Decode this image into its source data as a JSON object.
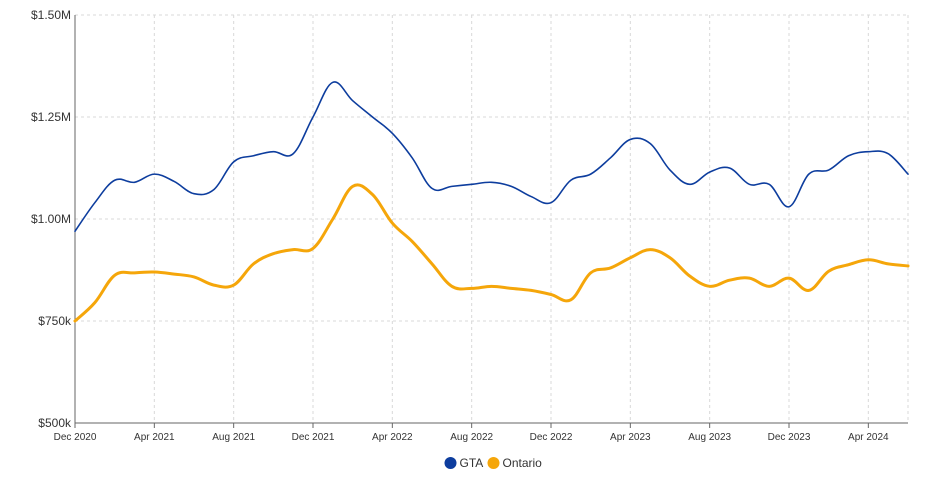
{
  "chart_data": {
    "type": "line",
    "title": "",
    "xlabel": "",
    "ylabel": "",
    "ylim": [
      500000,
      1500000
    ],
    "xlim": [
      "2020-12",
      "2024-06"
    ],
    "y_ticks": [
      {
        "value": 500000,
        "label": "$500k"
      },
      {
        "value": 750000,
        "label": "$750k"
      },
      {
        "value": 1000000,
        "label": "$1.00M"
      },
      {
        "value": 1250000,
        "label": "$1.25M"
      },
      {
        "value": 1500000,
        "label": "$1.50M"
      }
    ],
    "x_ticks": [
      {
        "value": "2020-12",
        "label": "Dec 2020"
      },
      {
        "value": "2021-04",
        "label": "Apr 2021"
      },
      {
        "value": "2021-08",
        "label": "Aug 2021"
      },
      {
        "value": "2021-12",
        "label": "Dec 2021"
      },
      {
        "value": "2022-04",
        "label": "Apr 2022"
      },
      {
        "value": "2022-08",
        "label": "Aug 2022"
      },
      {
        "value": "2022-12",
        "label": "Dec 2022"
      },
      {
        "value": "2023-04",
        "label": "Apr 2023"
      },
      {
        "value": "2023-08",
        "label": "Aug 2023"
      },
      {
        "value": "2023-12",
        "label": "Dec 2023"
      },
      {
        "value": "2024-04",
        "label": "Apr 2024"
      }
    ],
    "x": [
      "2020-12",
      "2021-01",
      "2021-02",
      "2021-03",
      "2021-04",
      "2021-05",
      "2021-06",
      "2021-07",
      "2021-08",
      "2021-09",
      "2021-10",
      "2021-11",
      "2021-12",
      "2022-01",
      "2022-02",
      "2022-03",
      "2022-04",
      "2022-05",
      "2022-06",
      "2022-07",
      "2022-08",
      "2022-09",
      "2022-10",
      "2022-11",
      "2022-12",
      "2023-01",
      "2023-02",
      "2023-03",
      "2023-04",
      "2023-05",
      "2023-06",
      "2023-07",
      "2023-08",
      "2023-09",
      "2023-10",
      "2023-11",
      "2023-12",
      "2024-01",
      "2024-02",
      "2024-03",
      "2024-04",
      "2024-05",
      "2024-06"
    ],
    "series": [
      {
        "name": "GTA",
        "color": "#0d3d9e",
        "values": [
          970000,
          1040000,
          1095000,
          1090000,
          1110000,
          1092000,
          1062000,
          1072000,
          1140000,
          1155000,
          1165000,
          1160000,
          1250000,
          1335000,
          1290000,
          1250000,
          1210000,
          1150000,
          1075000,
          1080000,
          1085000,
          1090000,
          1080000,
          1055000,
          1040000,
          1095000,
          1110000,
          1150000,
          1195000,
          1185000,
          1120000,
          1085000,
          1115000,
          1125000,
          1085000,
          1085000,
          1030000,
          1110000,
          1120000,
          1155000,
          1165000,
          1160000,
          1110000
        ]
      },
      {
        "name": "Ontario",
        "color": "#f5a60a",
        "values": [
          750000,
          795000,
          862000,
          868000,
          870000,
          865000,
          858000,
          838000,
          838000,
          890000,
          915000,
          925000,
          928000,
          1000000,
          1080000,
          1060000,
          990000,
          945000,
          890000,
          835000,
          830000,
          835000,
          830000,
          825000,
          815000,
          802000,
          868000,
          880000,
          905000,
          925000,
          905000,
          860000,
          835000,
          850000,
          855000,
          835000,
          855000,
          825000,
          872000,
          888000,
          900000,
          890000,
          885000
        ]
      }
    ]
  }
}
